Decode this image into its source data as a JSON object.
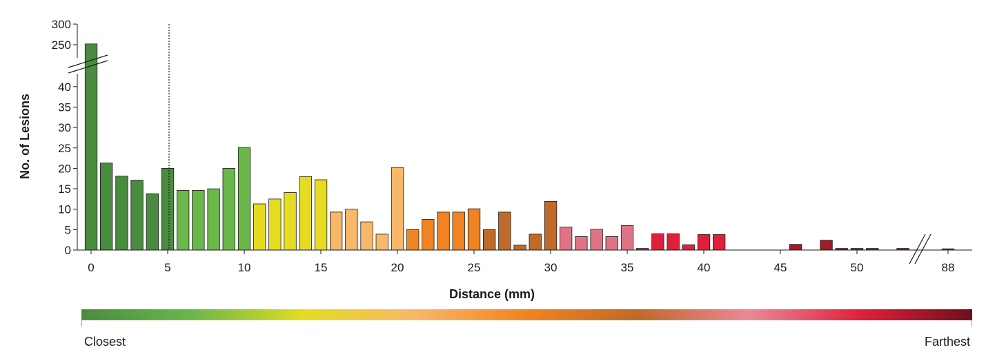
{
  "chart_data": {
    "type": "bar",
    "title": "",
    "xlabel": "Distance (mm)",
    "ylabel": "No. of Lesions",
    "ylim": [
      0,
      300
    ],
    "y_axis_break": {
      "lower_max": 42,
      "upper_min": 250,
      "upper_max": 300
    },
    "y_ticks_lower": [
      "0",
      "5",
      "10",
      "15",
      "20",
      "25",
      "30",
      "35",
      "40"
    ],
    "y_ticks_upper": [
      "250",
      "300"
    ],
    "x_axis_break": {
      "after": 54,
      "resumes_at": 88
    },
    "x_ticks": [
      "0",
      "5",
      "10",
      "15",
      "20",
      "25",
      "30",
      "35",
      "40",
      "45",
      "50",
      "88"
    ],
    "reference_line_x": 5,
    "grid": false,
    "bars": [
      {
        "x": 0,
        "value": 252,
        "color": "#4a8c3f"
      },
      {
        "x": 1,
        "value": 21.3,
        "color": "#4a8c3f"
      },
      {
        "x": 2,
        "value": 18.1,
        "color": "#4a8c3f"
      },
      {
        "x": 3,
        "value": 17.1,
        "color": "#4a8c3f"
      },
      {
        "x": 4,
        "value": 13.8,
        "color": "#4a8c3f"
      },
      {
        "x": 5,
        "value": 20.0,
        "color": "#4a8c3f"
      },
      {
        "x": 6,
        "value": 14.6,
        "color": "#6ab84a"
      },
      {
        "x": 7,
        "value": 14.6,
        "color": "#6ab84a"
      },
      {
        "x": 8,
        "value": 15.0,
        "color": "#6ab84a"
      },
      {
        "x": 9,
        "value": 20.0,
        "color": "#6ab84a"
      },
      {
        "x": 10,
        "value": 25.1,
        "color": "#6ab84a"
      },
      {
        "x": 11,
        "value": 11.3,
        "color": "#e5dc22"
      },
      {
        "x": 12,
        "value": 12.5,
        "color": "#e5dc22"
      },
      {
        "x": 13,
        "value": 14.1,
        "color": "#e5dc22"
      },
      {
        "x": 14,
        "value": 18.0,
        "color": "#e5dc22"
      },
      {
        "x": 15,
        "value": 17.2,
        "color": "#e5dc22"
      },
      {
        "x": 16,
        "value": 9.3,
        "color": "#f7b86a"
      },
      {
        "x": 17,
        "value": 10.0,
        "color": "#f7b86a"
      },
      {
        "x": 18,
        "value": 6.9,
        "color": "#f7b86a"
      },
      {
        "x": 19,
        "value": 3.9,
        "color": "#f7b86a"
      },
      {
        "x": 20,
        "value": 20.2,
        "color": "#f7b86a"
      },
      {
        "x": 21,
        "value": 5.0,
        "color": "#f08422"
      },
      {
        "x": 22,
        "value": 7.5,
        "color": "#f08422"
      },
      {
        "x": 23,
        "value": 9.3,
        "color": "#f08422"
      },
      {
        "x": 24,
        "value": 9.3,
        "color": "#f08422"
      },
      {
        "x": 25,
        "value": 10.1,
        "color": "#f08422"
      },
      {
        "x": 26,
        "value": 5.0,
        "color": "#bf6a2a"
      },
      {
        "x": 27,
        "value": 9.3,
        "color": "#bf6a2a"
      },
      {
        "x": 28,
        "value": 1.2,
        "color": "#bf6a2a"
      },
      {
        "x": 29,
        "value": 3.9,
        "color": "#bf6a2a"
      },
      {
        "x": 30,
        "value": 11.9,
        "color": "#bf6a2a"
      },
      {
        "x": 31,
        "value": 5.6,
        "color": "#e07487"
      },
      {
        "x": 32,
        "value": 3.3,
        "color": "#e07487"
      },
      {
        "x": 33,
        "value": 5.1,
        "color": "#e07487"
      },
      {
        "x": 34,
        "value": 3.3,
        "color": "#e07487"
      },
      {
        "x": 35,
        "value": 6.0,
        "color": "#e07487"
      },
      {
        "x": 36,
        "value": 0.4,
        "color": "#e0203b"
      },
      {
        "x": 37,
        "value": 4.0,
        "color": "#e0203b"
      },
      {
        "x": 38,
        "value": 4.0,
        "color": "#e0203b"
      },
      {
        "x": 39,
        "value": 1.3,
        "color": "#e0203b"
      },
      {
        "x": 40,
        "value": 3.8,
        "color": "#e0203b"
      },
      {
        "x": 41,
        "value": 3.8,
        "color": "#e0203b"
      },
      {
        "x": 46,
        "value": 1.4,
        "color": "#a31a28"
      },
      {
        "x": 48,
        "value": 2.4,
        "color": "#a31a28"
      },
      {
        "x": 49,
        "value": 0.4,
        "color": "#a31a28"
      },
      {
        "x": 50,
        "value": 0.4,
        "color": "#a31a28"
      },
      {
        "x": 51,
        "value": 0.4,
        "color": "#a31a28"
      },
      {
        "x": 53,
        "value": 0.4,
        "color": "#a31a28"
      },
      {
        "x": 88,
        "value": 0.3,
        "color": "#a31a28"
      }
    ],
    "color_scale": {
      "stops": [
        "#4a8c3f",
        "#6ab84a",
        "#e5dc22",
        "#f7b86a",
        "#f08422",
        "#bf6a2a",
        "#e98a99",
        "#e0203b",
        "#6e0f1a"
      ],
      "left_label": "Closest",
      "right_label": "Farthest"
    }
  }
}
